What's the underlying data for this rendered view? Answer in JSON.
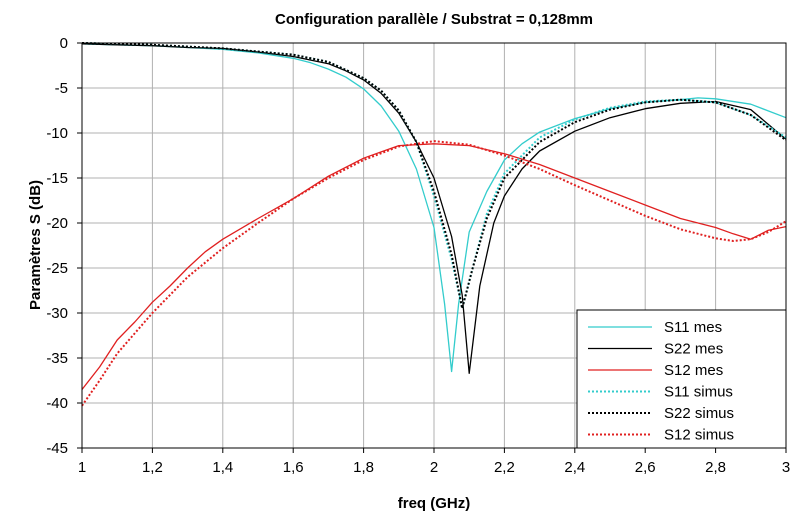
{
  "chart_data": {
    "type": "line",
    "title": "Configuration parallèle / Substrat = 0,128mm",
    "xlabel": "freq (GHz)",
    "ylabel": "Paramètres S (dB)",
    "xlim": [
      1,
      3
    ],
    "ylim": [
      -45,
      0
    ],
    "x_ticks": [
      1,
      1.2,
      1.4,
      1.6,
      1.8,
      2,
      2.2,
      2.4,
      2.6,
      2.8,
      3
    ],
    "x_tick_labels": [
      "1",
      "1,2",
      "1,4",
      "1,6",
      "1,8",
      "2",
      "2,2",
      "2,4",
      "2,6",
      "2,8",
      "3"
    ],
    "y_ticks": [
      0,
      -5,
      -10,
      -15,
      -20,
      -25,
      -30,
      -35,
      -40,
      -45
    ],
    "y_tick_labels": [
      "0",
      "-5",
      "-10",
      "-15",
      "-20",
      "-25",
      "-30",
      "-35",
      "-40",
      "-45"
    ],
    "grid": true,
    "legend_position": "bottom-right",
    "series": [
      {
        "name": "S11 mes",
        "color": "#33cccc",
        "dash": "solid",
        "points": [
          [
            1,
            -0.1
          ],
          [
            1.1,
            -0.2
          ],
          [
            1.2,
            -0.3
          ],
          [
            1.3,
            -0.5
          ],
          [
            1.4,
            -0.7
          ],
          [
            1.5,
            -1.1
          ],
          [
            1.6,
            -1.7
          ],
          [
            1.65,
            -2.2
          ],
          [
            1.7,
            -2.9
          ],
          [
            1.75,
            -3.8
          ],
          [
            1.8,
            -5.1
          ],
          [
            1.85,
            -7.0
          ],
          [
            1.9,
            -9.8
          ],
          [
            1.95,
            -14.0
          ],
          [
            2.0,
            -20.5
          ],
          [
            2.03,
            -29.0
          ],
          [
            2.05,
            -36.5
          ],
          [
            2.07,
            -29.0
          ],
          [
            2.1,
            -21.0
          ],
          [
            2.15,
            -16.5
          ],
          [
            2.2,
            -13.0
          ],
          [
            2.25,
            -11.2
          ],
          [
            2.3,
            -9.9
          ],
          [
            2.4,
            -8.4
          ],
          [
            2.5,
            -7.3
          ],
          [
            2.6,
            -6.6
          ],
          [
            2.7,
            -6.3
          ],
          [
            2.75,
            -6.1
          ],
          [
            2.8,
            -6.2
          ],
          [
            2.9,
            -6.8
          ],
          [
            3.0,
            -8.3
          ]
        ]
      },
      {
        "name": "S22 mes",
        "color": "#000000",
        "dash": "solid",
        "points": [
          [
            1,
            -0.1
          ],
          [
            1.1,
            -0.2
          ],
          [
            1.2,
            -0.3
          ],
          [
            1.3,
            -0.5
          ],
          [
            1.4,
            -0.6
          ],
          [
            1.5,
            -1.0
          ],
          [
            1.6,
            -1.5
          ],
          [
            1.7,
            -2.3
          ],
          [
            1.75,
            -3.1
          ],
          [
            1.8,
            -4.1
          ],
          [
            1.85,
            -5.6
          ],
          [
            1.9,
            -7.8
          ],
          [
            1.95,
            -11.0
          ],
          [
            2.0,
            -15.0
          ],
          [
            2.05,
            -21.5
          ],
          [
            2.08,
            -28.0
          ],
          [
            2.1,
            -36.7
          ],
          [
            2.13,
            -27.0
          ],
          [
            2.17,
            -20.0
          ],
          [
            2.2,
            -17.0
          ],
          [
            2.25,
            -14.0
          ],
          [
            2.3,
            -12.0
          ],
          [
            2.4,
            -9.8
          ],
          [
            2.5,
            -8.3
          ],
          [
            2.6,
            -7.3
          ],
          [
            2.7,
            -6.7
          ],
          [
            2.8,
            -6.5
          ],
          [
            2.9,
            -7.4
          ],
          [
            3.0,
            -10.7
          ]
        ]
      },
      {
        "name": "S12 mes",
        "color": "#e02020",
        "dash": "solid",
        "points": [
          [
            1,
            -38.5
          ],
          [
            1.05,
            -36.0
          ],
          [
            1.1,
            -33.0
          ],
          [
            1.15,
            -31.0
          ],
          [
            1.2,
            -28.8
          ],
          [
            1.25,
            -27.0
          ],
          [
            1.3,
            -25.0
          ],
          [
            1.35,
            -23.2
          ],
          [
            1.4,
            -21.8
          ],
          [
            1.5,
            -19.5
          ],
          [
            1.6,
            -17.3
          ],
          [
            1.7,
            -14.8
          ],
          [
            1.8,
            -12.8
          ],
          [
            1.9,
            -11.4
          ],
          [
            2.0,
            -11.2
          ],
          [
            2.1,
            -11.4
          ],
          [
            2.2,
            -12.3
          ],
          [
            2.3,
            -13.5
          ],
          [
            2.4,
            -15.0
          ],
          [
            2.5,
            -16.5
          ],
          [
            2.6,
            -18.0
          ],
          [
            2.7,
            -19.5
          ],
          [
            2.8,
            -20.5
          ],
          [
            2.85,
            -21.2
          ],
          [
            2.9,
            -21.8
          ],
          [
            2.95,
            -20.8
          ],
          [
            3.0,
            -20.4
          ]
        ]
      },
      {
        "name": "S11 simus",
        "color": "#33cccc",
        "dash": "dotted",
        "points": [
          [
            1,
            0
          ],
          [
            1.2,
            -0.2
          ],
          [
            1.4,
            -0.6
          ],
          [
            1.6,
            -1.3
          ],
          [
            1.7,
            -2.1
          ],
          [
            1.8,
            -3.9
          ],
          [
            1.85,
            -5.3
          ],
          [
            1.9,
            -7.5
          ],
          [
            1.95,
            -11.0
          ],
          [
            2.0,
            -17.0
          ],
          [
            2.05,
            -24.0
          ],
          [
            2.08,
            -29.5
          ],
          [
            2.11,
            -25.0
          ],
          [
            2.15,
            -19.0
          ],
          [
            2.2,
            -14.5
          ],
          [
            2.3,
            -10.5
          ],
          [
            2.4,
            -8.5
          ],
          [
            2.5,
            -7.2
          ],
          [
            2.6,
            -6.5
          ],
          [
            2.7,
            -6.3
          ],
          [
            2.8,
            -6.6
          ],
          [
            2.9,
            -8.0
          ],
          [
            3.0,
            -10.5
          ]
        ]
      },
      {
        "name": "S22 simus",
        "color": "#000000",
        "dash": "dotted",
        "points": [
          [
            1,
            0
          ],
          [
            1.2,
            -0.2
          ],
          [
            1.4,
            -0.6
          ],
          [
            1.6,
            -1.3
          ],
          [
            1.7,
            -2.1
          ],
          [
            1.8,
            -3.9
          ],
          [
            1.85,
            -5.3
          ],
          [
            1.9,
            -7.5
          ],
          [
            1.95,
            -11.0
          ],
          [
            2.0,
            -16.5
          ],
          [
            2.05,
            -23.5
          ],
          [
            2.08,
            -29.5
          ],
          [
            2.11,
            -25.0
          ],
          [
            2.15,
            -19.5
          ],
          [
            2.2,
            -15.0
          ],
          [
            2.3,
            -11.0
          ],
          [
            2.4,
            -8.8
          ],
          [
            2.5,
            -7.4
          ],
          [
            2.6,
            -6.6
          ],
          [
            2.7,
            -6.3
          ],
          [
            2.8,
            -6.6
          ],
          [
            2.9,
            -8.0
          ],
          [
            3.0,
            -10.8
          ]
        ]
      },
      {
        "name": "S12 simus",
        "color": "#e02020",
        "dash": "dotted",
        "points": [
          [
            1,
            -40.3
          ],
          [
            1.05,
            -37.5
          ],
          [
            1.1,
            -34.5
          ],
          [
            1.2,
            -30.0
          ],
          [
            1.3,
            -26.0
          ],
          [
            1.4,
            -22.8
          ],
          [
            1.5,
            -20.0
          ],
          [
            1.6,
            -17.3
          ],
          [
            1.7,
            -15.0
          ],
          [
            1.8,
            -13.0
          ],
          [
            1.9,
            -11.5
          ],
          [
            2.0,
            -10.9
          ],
          [
            2.1,
            -11.3
          ],
          [
            2.2,
            -12.5
          ],
          [
            2.3,
            -14.0
          ],
          [
            2.4,
            -15.8
          ],
          [
            2.5,
            -17.5
          ],
          [
            2.6,
            -19.2
          ],
          [
            2.7,
            -20.7
          ],
          [
            2.8,
            -21.7
          ],
          [
            2.85,
            -22.0
          ],
          [
            2.9,
            -21.8
          ],
          [
            2.95,
            -21.0
          ],
          [
            3.0,
            -19.8
          ]
        ]
      }
    ]
  }
}
